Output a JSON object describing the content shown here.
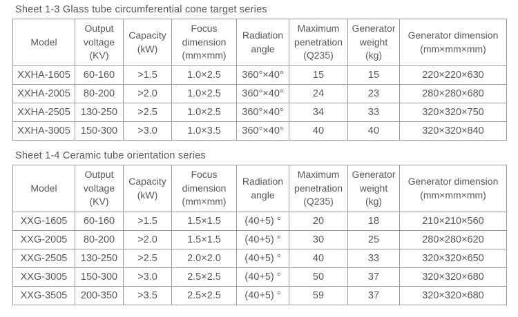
{
  "page": {
    "background_color": "#ffffff",
    "text_color": "#58585a",
    "border_color": "#9b9b9b"
  },
  "tables": [
    {
      "title": "Sheet 1-3 Glass tube circumferential cone target series",
      "headers": [
        {
          "id": "model",
          "lines": [
            "Model"
          ]
        },
        {
          "id": "output-voltage",
          "lines": [
            "Output",
            "voltage",
            "(KV)"
          ]
        },
        {
          "id": "capacity",
          "lines": [
            "Capacity",
            "(kW)"
          ]
        },
        {
          "id": "focus-dimension",
          "lines": [
            "Focus",
            "dimension",
            "(mm×mm)"
          ]
        },
        {
          "id": "radiation-angle",
          "lines": [
            "Radiation",
            "angle"
          ]
        },
        {
          "id": "maximum-penetration",
          "lines": [
            "Maximum",
            "penetration",
            "(Q235)"
          ]
        },
        {
          "id": "generator-weight",
          "lines": [
            "Generator",
            "weight",
            "(kg)"
          ]
        },
        {
          "id": "generator-dimension",
          "lines": [
            "Generator dimension",
            "(mm×mm×mm)"
          ]
        }
      ],
      "rows": [
        [
          "XXHA-1605",
          "60-160",
          ">1.5",
          "1.0×2.5",
          "360°×40°",
          "15",
          "15",
          "220×220×630"
        ],
        [
          "XXHA-2005",
          "80-200",
          ">2.0",
          "1.0×2.5",
          "360°×40°",
          "24",
          "23",
          "280×280×680"
        ],
        [
          "XXHA-2505",
          "130-250",
          ">2.5",
          "1.0×2.5",
          "360°×40°",
          "34",
          "33",
          "320×320×750"
        ],
        [
          "XXHA-3005",
          "150-300",
          ">3.0",
          "1.0×3.5",
          "360°×40°",
          "40",
          "40",
          "320×320×840"
        ]
      ]
    },
    {
      "title": "Sheet 1-4 Ceramic tube orientation series",
      "headers": [
        {
          "id": "model",
          "lines": [
            "Model"
          ]
        },
        {
          "id": "output-voltage",
          "lines": [
            "Output",
            "voltage",
            "(KV)"
          ]
        },
        {
          "id": "capacity",
          "lines": [
            "Capacity",
            "(kW)"
          ]
        },
        {
          "id": "focus-dimension",
          "lines": [
            "Focus",
            "dimension",
            "(mm×mm)"
          ]
        },
        {
          "id": "radiation-angle",
          "lines": [
            "Radiation",
            "angle"
          ]
        },
        {
          "id": "maximum-penetration",
          "lines": [
            "Maximum",
            "penetration",
            "(Q235)"
          ]
        },
        {
          "id": "generator-weight",
          "lines": [
            "Generator",
            "weight",
            "(kg)"
          ]
        },
        {
          "id": "generator-dimension",
          "lines": [
            "Generator dimension",
            "(mm×mm×mm)"
          ]
        }
      ],
      "rows": [
        [
          "XXG-1605",
          "60-160",
          ">1.5",
          "1.5×1.5",
          "(40+5) °",
          "20",
          "18",
          "210×210×560"
        ],
        [
          "XXG-2005",
          "80-200",
          ">2.0",
          "1.5×1.5",
          "(40+5) °",
          "30",
          "25",
          "280×280×620"
        ],
        [
          "XXG-2505",
          "130-250",
          ">2.5",
          "2.0×2.0",
          "(40+5) °",
          "40",
          "33",
          "320×320×650"
        ],
        [
          "XXG-3005",
          "150-300",
          ">3.0",
          "2.5×2.5",
          "(40+5) °",
          "50",
          "37",
          "320×320×680"
        ],
        [
          "XXG-3505",
          "200-350",
          ">3.5",
          "2.5×2.5",
          "(40+5) °",
          "59",
          "37",
          "320×320×680"
        ]
      ]
    }
  ]
}
